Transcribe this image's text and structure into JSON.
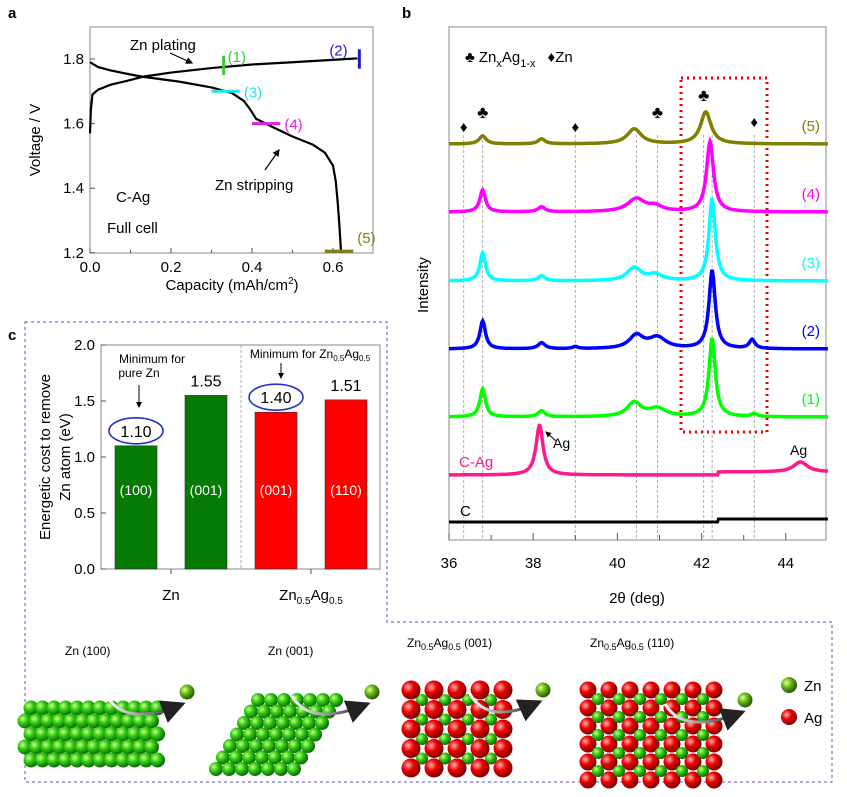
{
  "panel_labels": {
    "a": "a",
    "b": "b",
    "c": "c"
  },
  "chart_data": [
    {
      "id": "a",
      "type": "line",
      "xlabel": "Capacity (mAh/cm",
      "xlabel_sup": "2",
      "xlabel_end": ")",
      "ylabel": "Voltage / V",
      "xlim": [
        0,
        0.7
      ],
      "ylim": [
        1.2,
        1.9
      ],
      "xticks": [
        "0.0",
        "0.2",
        "0.4",
        "0.6"
      ],
      "yticks": [
        "1.2",
        "1.4",
        "1.6",
        "1.8"
      ],
      "annotations": {
        "plating": "Zn plating",
        "stripping": "Zn stripping",
        "cell1": "C-Ag",
        "cell2": "Full cell"
      },
      "series": [
        {
          "name": "Zn plating",
          "color": "#000000",
          "x": [
            0,
            0.002,
            0.006,
            0.02,
            0.05,
            0.1,
            0.13,
            0.2,
            0.3,
            0.4,
            0.5,
            0.66
          ],
          "y": [
            1.57,
            1.64,
            1.69,
            1.705,
            1.72,
            1.735,
            1.745,
            1.758,
            1.772,
            1.783,
            1.79,
            1.802
          ]
        },
        {
          "name": "Zn stripping",
          "color": "#000000",
          "x": [
            0,
            0.02,
            0.05,
            0.1,
            0.13,
            0.22,
            0.3,
            0.35,
            0.38,
            0.395,
            0.41,
            0.45,
            0.5,
            0.55,
            0.58,
            0.6,
            0.607,
            0.612,
            0.616,
            0.62
          ],
          "y": [
            1.79,
            1.775,
            1.765,
            1.752,
            1.745,
            1.73,
            1.712,
            1.695,
            1.67,
            1.645,
            1.615,
            1.59,
            1.56,
            1.535,
            1.51,
            1.47,
            1.42,
            1.35,
            1.28,
            1.2
          ]
        }
      ],
      "markers": [
        {
          "label": "(1)",
          "color": "#33cc33",
          "orient": "v",
          "x": 0.33,
          "y": [
            1.75,
            1.81
          ]
        },
        {
          "label": "(2)",
          "color": "#1a1acc",
          "orient": "v",
          "x": 0.665,
          "y": [
            1.77,
            1.83
          ]
        },
        {
          "label": "(3)",
          "color": "#22e5e5",
          "orient": "h",
          "x": [
            0.3,
            0.37
          ],
          "y": 1.7
        },
        {
          "label": "(4)",
          "color": "#e020e0",
          "orient": "h",
          "x": [
            0.4,
            0.47
          ],
          "y": 1.6
        },
        {
          "label": "(5)",
          "color": "#808010",
          "orient": "h",
          "x": [
            0.58,
            0.65
          ],
          "y": 1.205
        }
      ]
    },
    {
      "id": "b",
      "type": "line",
      "xlabel": "2θ (deg)",
      "ylabel": "Intensity",
      "xlim": [
        36,
        45
      ],
      "xticks": [
        "36",
        "38",
        "40",
        "42",
        "44"
      ],
      "legend": {
        "alloy_symbol": "♣",
        "alloy": "Zn",
        "alloy_sub1": "x",
        "alloy_mid": "Ag",
        "alloy_sub2": "1-x",
        "zn_symbol": "♦",
        "zn": "Zn"
      },
      "reference_lines": [
        36.35,
        36.8,
        39.0,
        40.45,
        40.95,
        42.05,
        42.25,
        43.25
      ],
      "phase_marks": [
        {
          "symbol": "♦",
          "x": 36.35
        },
        {
          "symbol": "♣",
          "x": 36.8
        },
        {
          "symbol": "♦",
          "x": 39.0
        },
        {
          "symbol": "♣",
          "x": 40.95
        },
        {
          "symbol": "♣",
          "x": 42.05
        },
        {
          "symbol": "♦",
          "x": 43.25
        }
      ],
      "highlight_box_x": [
        41.5,
        43.6
      ],
      "series": [
        {
          "name": "(5)",
          "color": "#808000",
          "peaks": [
            [
              36.8,
              8,
              0.1
            ],
            [
              38.2,
              5,
              0.1
            ],
            [
              40.4,
              15,
              0.2
            ],
            [
              42.1,
              32,
              0.15
            ]
          ]
        },
        {
          "name": "(4)",
          "color": "#ff00ff",
          "peaks": [
            [
              36.8,
              22,
              0.08
            ],
            [
              38.2,
              5,
              0.1
            ],
            [
              40.45,
              13,
              0.25
            ],
            [
              40.9,
              5,
              0.2
            ],
            [
              42.2,
              70,
              0.1
            ]
          ]
        },
        {
          "name": "(3)",
          "color": "#00ffff",
          "peaks": [
            [
              36.8,
              28,
              0.08
            ],
            [
              38.2,
              5,
              0.1
            ],
            [
              40.4,
              13,
              0.2
            ],
            [
              40.9,
              6,
              0.2
            ],
            [
              42.25,
              82,
              0.09
            ]
          ]
        },
        {
          "name": "(2)",
          "color": "#0000ff",
          "peaks": [
            [
              36.8,
              28,
              0.08
            ],
            [
              38.2,
              6,
              0.1
            ],
            [
              39.0,
              2,
              0.08
            ],
            [
              40.45,
              13,
              0.2
            ],
            [
              40.95,
              11,
              0.25
            ],
            [
              42.25,
              78,
              0.09
            ],
            [
              43.2,
              9,
              0.08
            ]
          ]
        },
        {
          "name": "(1)",
          "color": "#00ff00",
          "peaks": [
            [
              36.8,
              28,
              0.08
            ],
            [
              38.2,
              6,
              0.1
            ],
            [
              40.4,
              14,
              0.2
            ],
            [
              40.95,
              8,
              0.25
            ],
            [
              42.25,
              78,
              0.09
            ],
            [
              43.25,
              3,
              0.08
            ]
          ]
        },
        {
          "name": "C-Ag",
          "color": "#ff1a8c",
          "peaks": [
            [
              38.15,
              50,
              0.1
            ],
            [
              44.35,
              10,
              0.2
            ]
          ],
          "peak_labels": [
            "Ag",
            "Ag"
          ]
        },
        {
          "name": "C",
          "color": "#000000",
          "peaks": []
        }
      ]
    },
    {
      "id": "c",
      "type": "bar",
      "ylabel_line1": "Energetic cost to remove",
      "ylabel_line2": "Zn atom (eV)",
      "ylim": [
        0,
        2.0
      ],
      "yticks": [
        "0.0",
        "0.5",
        "1.0",
        "1.5",
        "2.0"
      ],
      "groups": [
        {
          "name": "Zn",
          "sub": "",
          "note1": "Minimum for",
          "note2": "pure Zn"
        },
        {
          "name": "Zn",
          "sub1": "0.5",
          "mid": "Ag",
          "sub2": "0.5",
          "note1": "Minimum for Zn",
          "note_sub1": "0.5",
          "note_mid": "Ag",
          "note_sub2": "0.5"
        }
      ],
      "bars": [
        {
          "facet": "(100)",
          "value": 1.1,
          "label": "1.10",
          "color": "#057a05",
          "circled": true
        },
        {
          "facet": "(001)",
          "value": 1.55,
          "label": "1.55",
          "color": "#057a05",
          "circled": false
        },
        {
          "facet": "(001)",
          "value": 1.4,
          "label": "1.40",
          "color": "#ff0000",
          "circled": true
        },
        {
          "facet": "(110)",
          "value": 1.51,
          "label": "1.51",
          "color": "#ff0000",
          "circled": false
        }
      ]
    }
  ],
  "structures": {
    "items": [
      {
        "base": "Zn",
        "facet": " (100)"
      },
      {
        "base": "Zn",
        "facet": " (001)"
      },
      {
        "base": "Zn",
        "sub1": "0.5",
        "mid": "Ag",
        "sub2": "0.5",
        "facet": " (001)"
      },
      {
        "base": "Zn",
        "sub1": "0.5",
        "mid": "Ag",
        "sub2": "0.5",
        "facet": " (110)"
      }
    ],
    "legend": [
      {
        "label": "Zn",
        "color": "#33cc11"
      },
      {
        "label": "Ag",
        "color": "#ee0000"
      }
    ]
  }
}
